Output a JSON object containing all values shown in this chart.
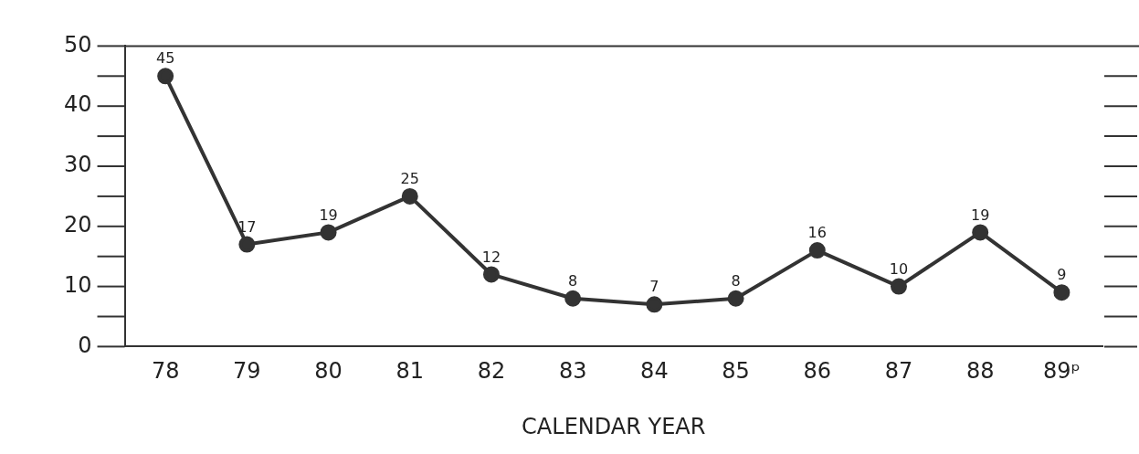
{
  "chart_data": {
    "type": "line",
    "xlabel": "CALENDAR YEAR",
    "categories": [
      "78",
      "79",
      "80",
      "81",
      "82",
      "83",
      "84",
      "85",
      "86",
      "87",
      "88",
      "89ᵖ"
    ],
    "series": [
      {
        "color": "#333333",
        "values": [
          45,
          17,
          19,
          25,
          12,
          8,
          7,
          8,
          16,
          10,
          19,
          9
        ]
      }
    ],
    "ylim": [
      0,
      50
    ],
    "yticks": [
      0,
      10,
      20,
      30,
      40,
      50
    ],
    "data_labels": true,
    "marker": "circle",
    "line_style": "solid",
    "grid": false,
    "legend": false
  }
}
